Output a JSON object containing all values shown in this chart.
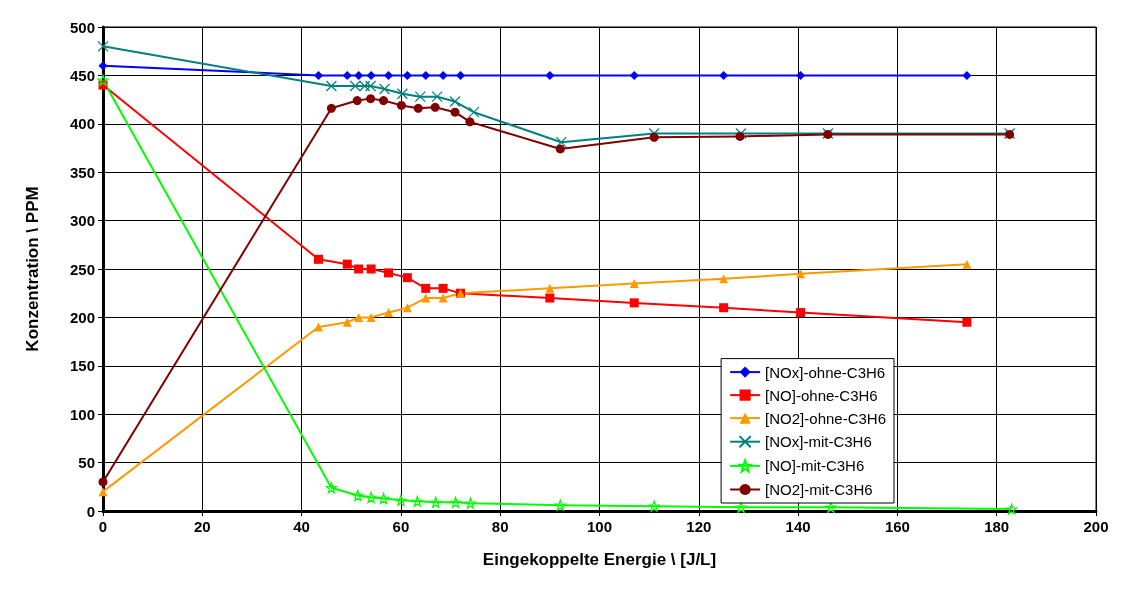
{
  "chart_data": {
    "type": "line",
    "xlabel": "Eingekoppelte Energie \\ [J/L]",
    "ylabel": "Konzentration \\ PPM",
    "xlim": [
      0,
      200
    ],
    "xticks": [
      0,
      20,
      40,
      60,
      80,
      100,
      120,
      140,
      160,
      180,
      200
    ],
    "ylim": [
      0,
      500
    ],
    "yticks": [
      0,
      50,
      100,
      150,
      200,
      250,
      300,
      350,
      400,
      450,
      500
    ],
    "grid": true,
    "legend": "bottom right",
    "line_style": "solid",
    "series": [
      {
        "name": "[NOx]-ohne-C3H6",
        "color": "#0000ff",
        "marker": "diamond",
        "x": [
          0,
          43.4,
          49.2,
          51.5,
          54,
          57.5,
          61.3,
          65,
          68.5,
          72,
          90,
          107,
          125,
          140.5,
          174
        ],
        "values": [
          460,
          450,
          450,
          450,
          450,
          450,
          450,
          450,
          450,
          450,
          450,
          450,
          450,
          450,
          450
        ]
      },
      {
        "name": "[NO]-ohne-C3H6",
        "color": "#ff0000",
        "marker": "square",
        "x": [
          0,
          43.4,
          49.2,
          51.5,
          54,
          57.5,
          61.3,
          65,
          68.5,
          72,
          90,
          107,
          125,
          140.5,
          174
        ],
        "values": [
          440,
          260,
          255,
          250,
          250,
          246,
          241,
          230,
          230,
          225,
          220,
          215,
          210,
          205,
          195
        ]
      },
      {
        "name": "[NO2]-ohne-C3H6",
        "color": "#ff9900",
        "marker": "triangle",
        "x": [
          0,
          43.4,
          49.2,
          51.5,
          54,
          57.5,
          61.3,
          65,
          68.5,
          72,
          90,
          107,
          125,
          140.5,
          174
        ],
        "values": [
          20,
          190,
          195,
          200,
          200,
          205,
          210,
          220,
          220,
          225,
          230,
          235,
          240,
          245,
          255
        ]
      },
      {
        "name": "[NOx]-mit-C3H6",
        "color": "#008080",
        "marker": "cross",
        "x": [
          0,
          46,
          50.8,
          52.7,
          53.9,
          56.7,
          60.3,
          63.9,
          67.3,
          70.9,
          74.7,
          92.3,
          111,
          128.5,
          146,
          182.6
        ],
        "values": [
          480,
          439,
          439,
          439,
          439,
          436,
          431,
          428,
          428,
          423,
          412,
          381,
          390,
          390,
          390,
          390
        ]
      },
      {
        "name": "[NO]-mit-C3H6",
        "color": "#00ff00",
        "marker": "star",
        "x": [
          0,
          46,
          51.3,
          54,
          56.5,
          60,
          63.3,
          67,
          71,
          74,
          92.1,
          111,
          128.5,
          146.6,
          183
        ],
        "values": [
          445,
          24,
          16,
          14,
          13,
          11,
          10,
          9,
          9,
          8,
          6,
          5,
          4,
          4,
          2
        ]
      },
      {
        "name": "[NO2]-mit-C3H6",
        "color": "#800000",
        "marker": "circle",
        "x": [
          0,
          46,
          51.2,
          53.9,
          56.5,
          60.1,
          63.5,
          66.9,
          70.9,
          73.9,
          92.1,
          111,
          128.3,
          146,
          182.6
        ],
        "values": [
          30,
          416,
          424,
          426,
          424,
          419,
          416,
          417,
          412,
          402,
          374,
          386,
          387,
          389,
          389
        ]
      }
    ]
  }
}
